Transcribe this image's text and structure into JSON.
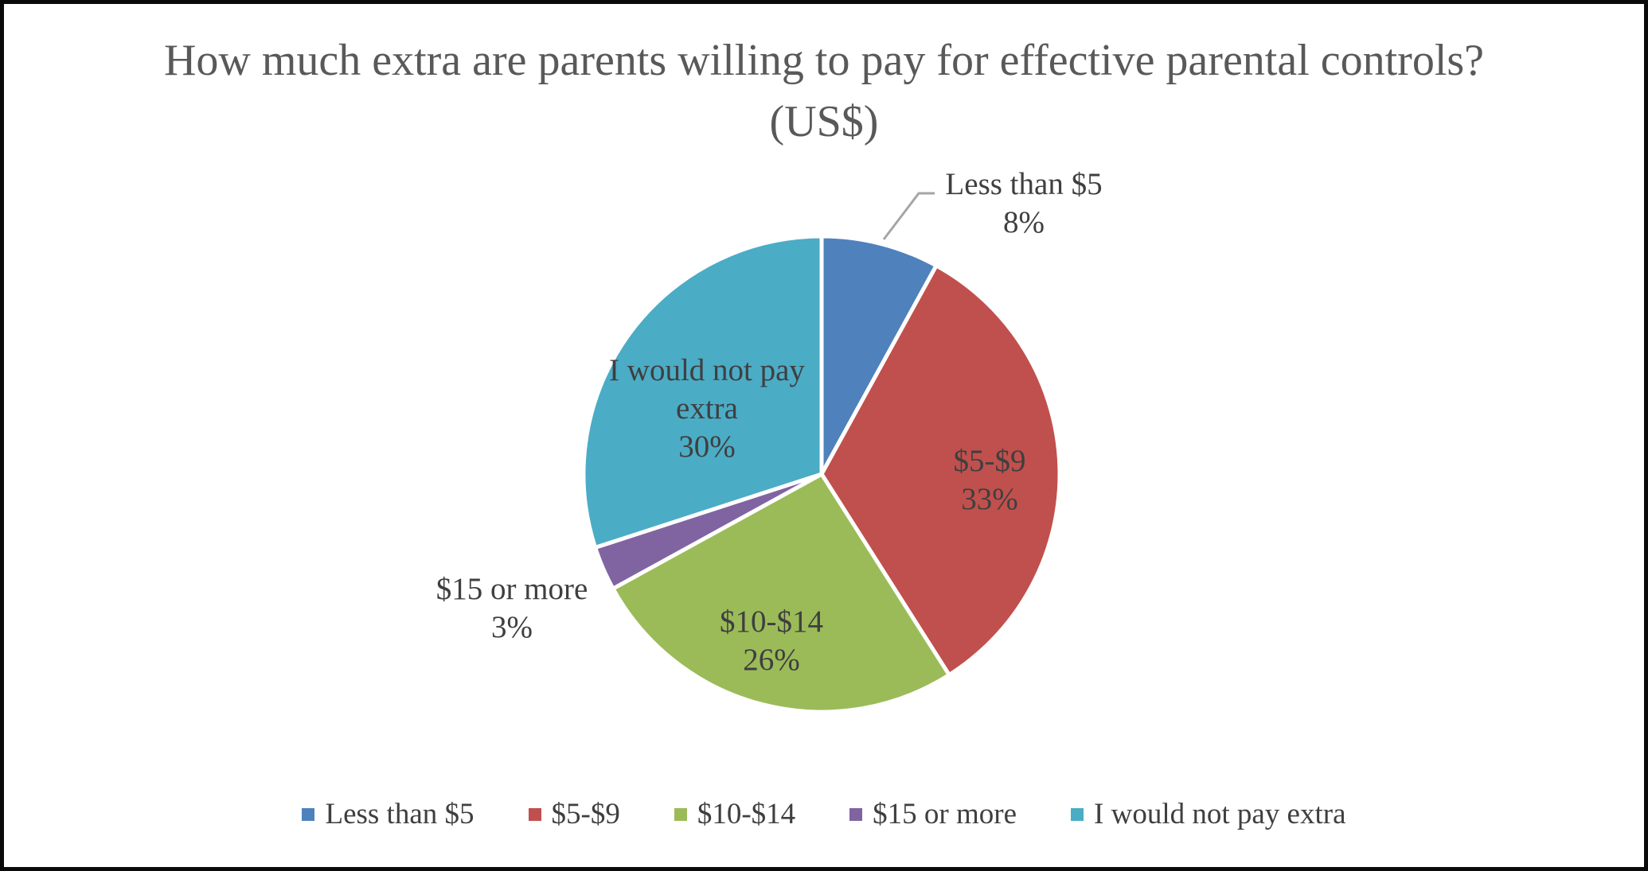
{
  "chart": {
    "title": "How much extra are parents willing to pay for effective parental controls? (US$)"
  },
  "chart_data": {
    "type": "pie",
    "title": "How much extra are parents willing to pay for effective parental controls? (US$)",
    "categories": [
      "Less than $5",
      "$5-$9",
      "$10-$14",
      "$15 or more",
      "I would not pay extra"
    ],
    "values": [
      8,
      33,
      26,
      3,
      30
    ],
    "unit": "%",
    "start_angle_deg": -90,
    "direction": "clockwise",
    "legend_position": "bottom",
    "slices": [
      {
        "label": "Less than $5",
        "value": 8,
        "pct_text": "8%",
        "color": "#4F81BD"
      },
      {
        "label": "$5-$9",
        "value": 33,
        "pct_text": "33%",
        "color": "#C0504D"
      },
      {
        "label": "$10-$14",
        "value": 26,
        "pct_text": "26%",
        "color": "#9BBB59"
      },
      {
        "label": "$15 or more",
        "value": 3,
        "pct_text": "3%",
        "color": "#8064A2"
      },
      {
        "label": "I would not pay extra",
        "value": 30,
        "pct_text": "30%",
        "color": "#4BACC6"
      }
    ]
  },
  "style": {
    "title_color": "#595959",
    "label_color": "#3F3F3F",
    "leader_line_color": "#A6A6A6",
    "slice_border_color": "#FFFFFF",
    "frame_border_color": "#0A0A0A"
  }
}
